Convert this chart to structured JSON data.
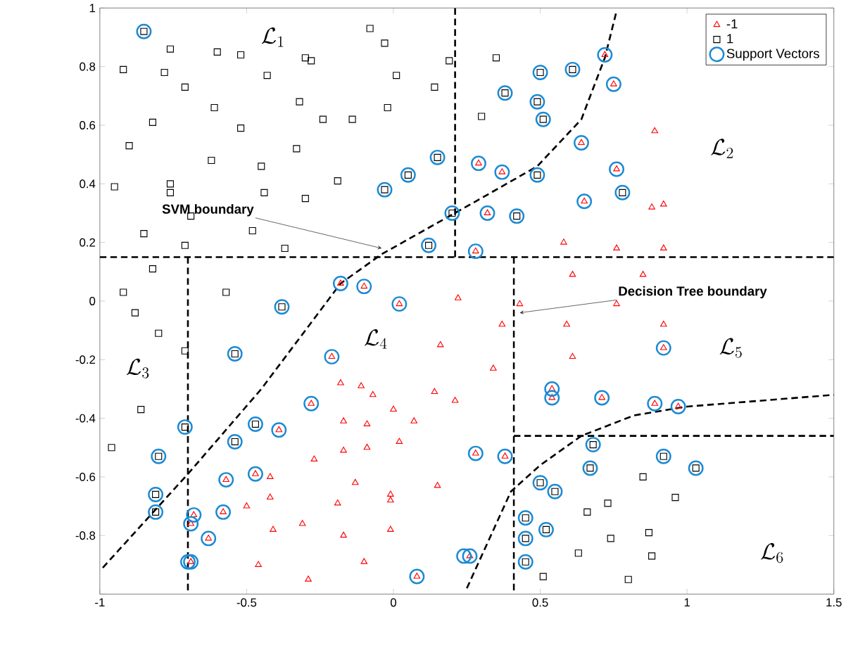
{
  "chart_data": {
    "type": "scatter",
    "xlim": [
      -1,
      1.5
    ],
    "ylim": [
      -1,
      1
    ],
    "xticks": [
      -1,
      -0.5,
      0,
      0.5,
      1,
      1.5
    ],
    "yticks": [
      {
        "value": -1,
        "label": null
      },
      -0.8,
      -0.6,
      -0.4,
      -0.2,
      0,
      0.2,
      0.4,
      0.6,
      0.8,
      1
    ],
    "legend": "top right",
    "grid": false,
    "series": [
      {
        "name": "-1",
        "marker": "triangle",
        "color": "#ff0000",
        "x": [
          -0.18,
          -0.1,
          0.02,
          0.22,
          0.29,
          0.28,
          0.72,
          0.75,
          0.89,
          0.64,
          0.37,
          0.76,
          0.65,
          0.32,
          0.88,
          0.92,
          0.58,
          0.76,
          0.92,
          0.61,
          0.85,
          0.43,
          0.76,
          -0.21,
          0.16,
          -0.28,
          -0.18,
          -0.11,
          -0.07,
          0.0,
          0.14,
          0.21,
          -0.17,
          -0.09,
          0.07,
          -0.39,
          -0.17,
          -0.09,
          0.02,
          0.28,
          -0.27,
          -0.57,
          -0.47,
          -0.42,
          -0.13,
          0.15,
          -0.42,
          -0.5,
          -0.58,
          -0.19,
          -0.01,
          -0.01,
          -0.68,
          -0.69,
          -0.31,
          -0.41,
          -0.17,
          -0.01,
          -0.63,
          -0.69,
          -0.46,
          -0.1,
          -0.29,
          0.08,
          0.26,
          0.37,
          0.59,
          0.92,
          0.92,
          0.61,
          0.34,
          0.54,
          0.54,
          0.71,
          0.89,
          0.97,
          0.38
        ],
        "values": [
          0.06,
          0.05,
          -0.01,
          0.01,
          0.47,
          0.17,
          0.84,
          0.74,
          0.58,
          0.54,
          0.44,
          0.45,
          0.34,
          0.3,
          0.32,
          0.33,
          0.2,
          0.18,
          0.18,
          0.09,
          0.09,
          -0.01,
          -0.01,
          -0.19,
          -0.15,
          -0.35,
          -0.28,
          -0.29,
          -0.32,
          -0.37,
          -0.31,
          -0.34,
          -0.41,
          -0.42,
          -0.41,
          -0.44,
          -0.51,
          -0.5,
          -0.48,
          -0.52,
          -0.54,
          -0.61,
          -0.59,
          -0.6,
          -0.62,
          -0.63,
          -0.67,
          -0.7,
          -0.72,
          -0.69,
          -0.66,
          -0.68,
          -0.73,
          -0.76,
          -0.76,
          -0.78,
          -0.8,
          -0.78,
          -0.81,
          -0.89,
          -0.9,
          -0.89,
          -0.95,
          -0.94,
          -0.87,
          -0.08,
          -0.08,
          -0.08,
          -0.16,
          -0.19,
          -0.23,
          -0.3,
          -0.33,
          -0.33,
          -0.35,
          -0.36,
          -0.53
        ]
      },
      {
        "name": "1",
        "marker": "square",
        "color": "#000000",
        "x": [
          -0.85,
          -0.76,
          -0.6,
          -0.52,
          -0.08,
          -0.03,
          -0.3,
          -0.28,
          -0.92,
          -0.78,
          -0.71,
          -0.43,
          0.01,
          0.19,
          0.14,
          -0.61,
          -0.32,
          -0.02,
          -0.82,
          -0.52,
          -0.24,
          -0.14,
          -0.9,
          -0.33,
          -0.62,
          -0.45,
          0.15,
          0.05,
          -0.03,
          -0.95,
          -0.76,
          -0.76,
          -0.44,
          -0.19,
          -0.3,
          -0.69,
          -0.85,
          -0.48,
          -0.71,
          -0.37,
          0.12,
          0.2,
          -0.82,
          -0.92,
          -0.57,
          -0.38,
          0.35,
          0.5,
          0.61,
          0.38,
          0.49,
          0.51,
          0.3,
          0.49,
          0.78,
          0.42,
          -0.88,
          -0.8,
          -0.71,
          -0.54,
          -0.86,
          -0.96,
          -0.71,
          -0.47,
          -0.54,
          -0.8,
          -0.81,
          -0.81,
          0.68,
          0.67,
          0.92,
          1.03,
          0.85,
          0.5,
          0.55,
          0.96,
          0.66,
          0.73,
          0.45,
          0.52,
          0.45,
          0.74,
          0.87,
          0.63,
          0.88,
          0.45,
          0.51,
          0.8
        ],
        "values": [
          0.92,
          0.86,
          0.85,
          0.84,
          0.93,
          0.88,
          0.83,
          0.82,
          0.79,
          0.78,
          0.73,
          0.77,
          0.77,
          0.82,
          0.73,
          0.66,
          0.68,
          0.66,
          0.61,
          0.59,
          0.62,
          0.62,
          0.53,
          0.52,
          0.48,
          0.46,
          0.49,
          0.43,
          0.38,
          0.39,
          0.4,
          0.37,
          0.37,
          0.41,
          0.35,
          0.29,
          0.23,
          0.24,
          0.19,
          0.18,
          0.19,
          0.3,
          0.11,
          0.03,
          0.03,
          -0.02,
          0.83,
          0.78,
          0.79,
          0.71,
          0.68,
          0.62,
          0.63,
          0.43,
          0.37,
          0.29,
          -0.04,
          -0.11,
          -0.17,
          -0.18,
          -0.37,
          -0.5,
          -0.43,
          -0.42,
          -0.48,
          -0.53,
          -0.66,
          -0.72,
          -0.49,
          -0.57,
          -0.53,
          -0.57,
          -0.6,
          -0.62,
          -0.65,
          -0.67,
          -0.72,
          -0.69,
          -0.74,
          -0.78,
          -0.81,
          -0.81,
          -0.79,
          -0.86,
          -0.87,
          -0.89,
          -0.94,
          -0.95
        ]
      },
      {
        "name": "Support Vectors",
        "marker": "circle",
        "color": "#1a8ad4",
        "x": [
          -0.85,
          0.15,
          0.05,
          -0.03,
          0.12,
          0.2,
          -0.38,
          0.5,
          0.61,
          0.38,
          0.49,
          0.51,
          0.49,
          0.78,
          0.42,
          -0.54,
          -0.71,
          -0.47,
          -0.54,
          -0.8,
          -0.81,
          -0.81,
          0.68,
          0.67,
          0.92,
          1.03,
          0.5,
          0.55,
          0.45,
          0.52,
          0.45,
          0.45,
          -0.18,
          -0.1,
          0.02,
          0.29,
          0.28,
          0.72,
          0.75,
          0.64,
          0.37,
          0.76,
          0.65,
          0.32,
          -0.21,
          -0.28,
          -0.39,
          0.28,
          -0.57,
          -0.47,
          -0.58,
          -0.68,
          -0.69,
          -0.63,
          -0.69,
          -0.7,
          0.08,
          0.26,
          0.24,
          0.92,
          0.54,
          0.54,
          0.71,
          0.89,
          0.97,
          0.38
        ],
        "values": [
          0.92,
          0.49,
          0.43,
          0.38,
          0.19,
          0.3,
          -0.02,
          0.78,
          0.79,
          0.71,
          0.68,
          0.62,
          0.43,
          0.37,
          0.29,
          -0.18,
          -0.43,
          -0.42,
          -0.48,
          -0.53,
          -0.66,
          -0.72,
          -0.49,
          -0.57,
          -0.53,
          -0.57,
          -0.62,
          -0.65,
          -0.74,
          -0.78,
          -0.81,
          -0.89,
          0.06,
          0.05,
          -0.01,
          0.47,
          0.17,
          0.84,
          0.74,
          0.54,
          0.44,
          0.45,
          0.34,
          0.3,
          -0.19,
          -0.35,
          -0.44,
          -0.52,
          -0.61,
          -0.59,
          -0.72,
          -0.73,
          -0.76,
          -0.81,
          -0.89,
          -0.89,
          -0.94,
          -0.87,
          -0.87,
          -0.16,
          -0.3,
          -0.33,
          -0.33,
          -0.35,
          -0.36,
          -0.53
        ]
      },
      {
        "type": "line",
        "line_style": "dashed",
        "color": "#000000",
        "x": [
          -1,
          1.5
        ],
        "values": [
          0.15,
          0.15
        ]
      },
      {
        "type": "line",
        "line_style": "dashed",
        "color": "#000000",
        "x": [
          0.21,
          0.21
        ],
        "values": [
          0.15,
          1
        ]
      },
      {
        "type": "line",
        "line_style": "dashed",
        "color": "#000000",
        "x": [
          -0.7,
          -0.7
        ],
        "values": [
          0.15,
          -1
        ]
      },
      {
        "type": "line",
        "line_style": "dashed",
        "color": "#000000",
        "x": [
          0.41,
          0.41
        ],
        "values": [
          0.15,
          -1
        ]
      },
      {
        "type": "line",
        "line_style": "dashed",
        "color": "#000000",
        "x": [
          0.41,
          1.5
        ],
        "values": [
          -0.46,
          -0.46
        ]
      },
      {
        "type": "line",
        "line_style": "dashed",
        "color": "#000000",
        "x": [
          -0.99,
          -0.7,
          -0.45,
          -0.18,
          -0.04,
          0.28,
          0.49,
          0.64,
          0.72,
          0.76
        ],
        "values": [
          -0.91,
          -0.59,
          -0.3,
          0.06,
          0.16,
          0.34,
          0.46,
          0.62,
          0.83,
          0.99
        ]
      },
      {
        "type": "line",
        "line_style": "dashed",
        "color": "#000000",
        "x": [
          0.25,
          0.4,
          0.5,
          0.64,
          0.82,
          1.0,
          1.5
        ],
        "values": [
          -0.98,
          -0.65,
          -0.56,
          -0.46,
          -0.39,
          -0.36,
          -0.32
        ]
      }
    ],
    "annotations": [
      {
        "text": "SVM boundary",
        "x": -0.04,
        "y": 0.18
      },
      {
        "text": "Decision Tree boundary",
        "x": 0.43,
        "y": -0.04
      },
      "\\mathcal{L}_{1}",
      "\\mathcal{L}_{2}",
      "\\mathcal{L}_{3}",
      "\\mathcal{L}_{4}",
      "\\mathcal{L}_{5}",
      "\\mathcal{L}_{6}"
    ]
  }
}
